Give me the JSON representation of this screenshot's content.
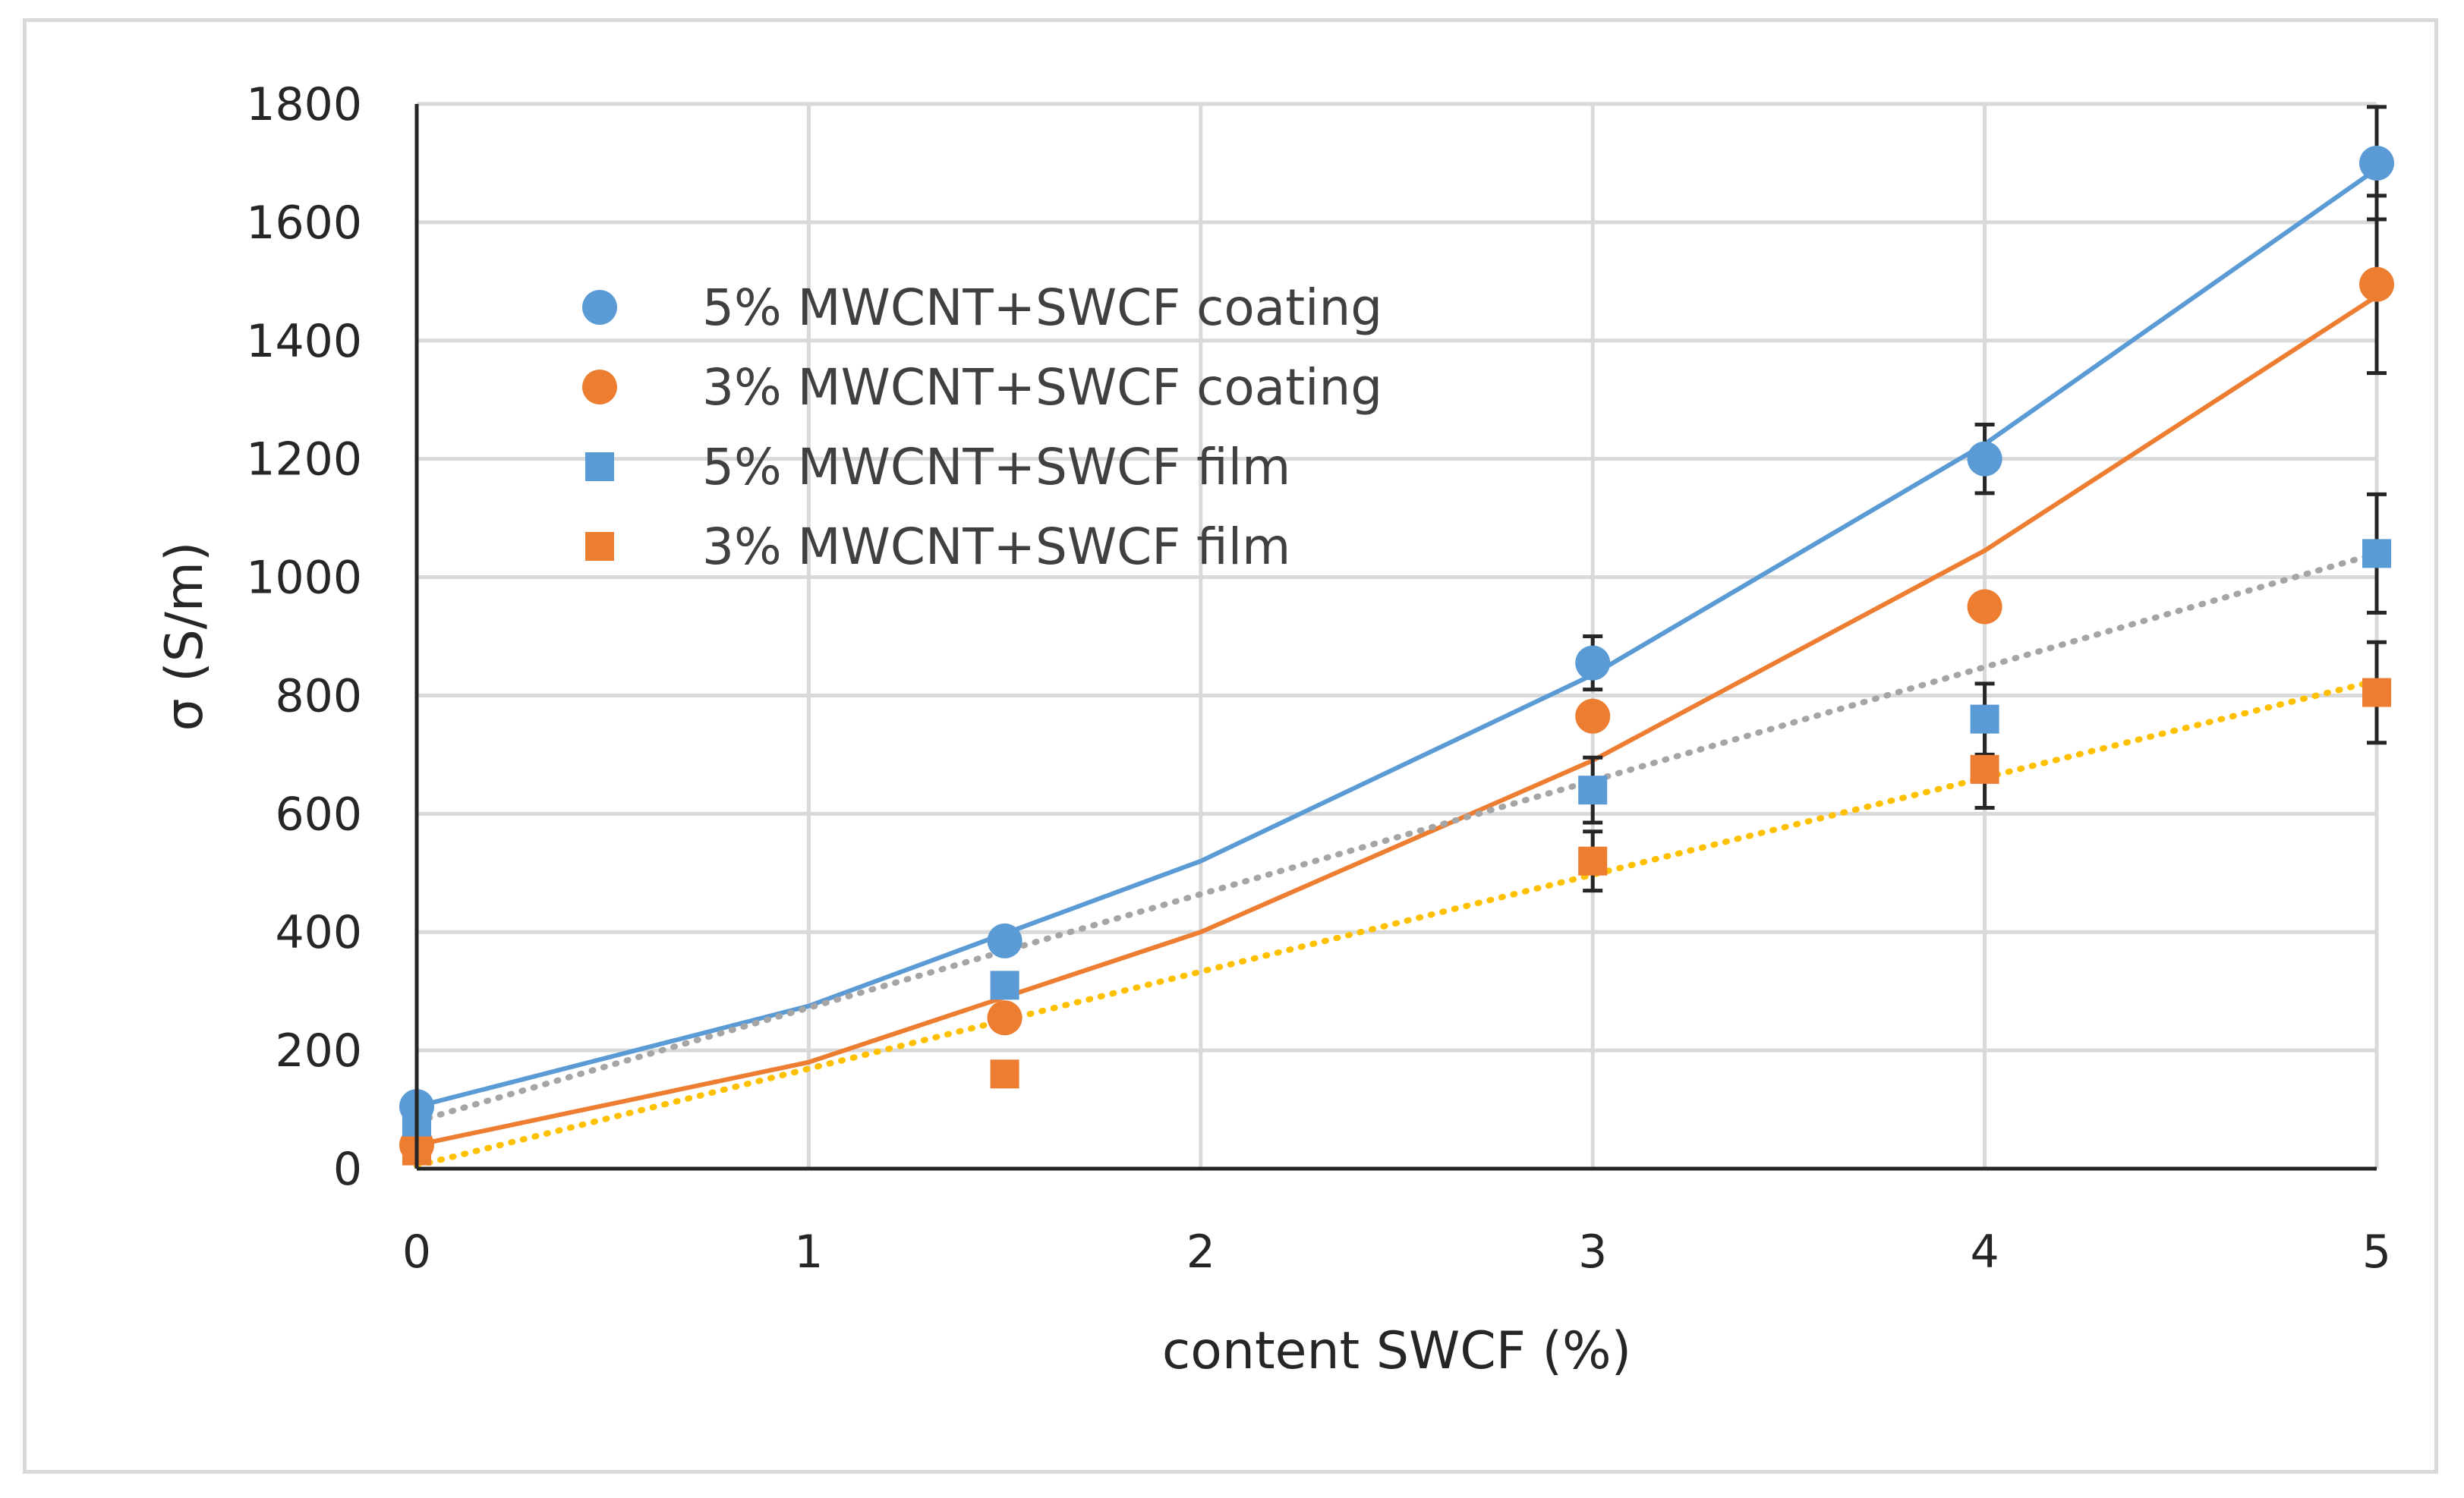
{
  "chart_data": {
    "type": "scatter",
    "title": "",
    "xlabel": "content SWCF (%)",
    "ylabel": "σ (S/m)",
    "xlim": [
      0,
      5
    ],
    "ylim": [
      0,
      1800
    ],
    "xticks": [
      "0",
      "1",
      "2",
      "3",
      "4",
      "5"
    ],
    "yticks": [
      "0",
      "200",
      "400",
      "600",
      "800",
      "1000",
      "1200",
      "1400",
      "1600",
      "1800"
    ],
    "grid": true,
    "legend_position": "top-left",
    "series": [
      {
        "name": "5% MWCNT+SWCF coating",
        "marker": "circle",
        "color": "#5b9bd5",
        "x": [
          0,
          1.5,
          3,
          4,
          5
        ],
        "y": [
          105,
          385,
          855,
          1200,
          1700
        ],
        "error": [
          0,
          0,
          45,
          58,
          95
        ],
        "trendline": {
          "style": "solid",
          "points": [
            [
              0,
              105
            ],
            [
              1,
              275
            ],
            [
              2,
              520
            ],
            [
              3,
              835
            ],
            [
              4,
              1225
            ],
            [
              5,
              1690
            ]
          ]
        }
      },
      {
        "name": "3% MWCNT+SWCF coating",
        "marker": "circle",
        "color": "#ed7d31",
        "x": [
          0,
          1.5,
          3,
          4,
          5
        ],
        "y": [
          40,
          255,
          765,
          950,
          1495
        ],
        "error": [
          0,
          0,
          0,
          0,
          150
        ],
        "trendline": {
          "style": "solid",
          "points": [
            [
              0,
              40
            ],
            [
              1,
              180
            ],
            [
              2,
              400
            ],
            [
              3,
              690
            ],
            [
              4,
              1045
            ],
            [
              5,
              1475
            ]
          ]
        }
      },
      {
        "name": "5% MWCNT+SWCF film",
        "marker": "square",
        "color": "#5b9bd5",
        "x": [
          0,
          1.5,
          3,
          4,
          5
        ],
        "y": [
          70,
          310,
          640,
          760,
          1040
        ],
        "error": [
          0,
          0,
          55,
          60,
          100
        ],
        "trendline": {
          "style": "dotted",
          "color": "#a5a5a5",
          "points": [
            [
              0,
              80
            ],
            [
              5,
              1040
            ]
          ]
        }
      },
      {
        "name": "3% MWCNT+SWCF film",
        "marker": "square",
        "color": "#ed7d31",
        "x": [
          0,
          1.5,
          3,
          4,
          5
        ],
        "y": [
          30,
          160,
          520,
          675,
          805
        ],
        "error": [
          0,
          0,
          50,
          65,
          85
        ],
        "trendline": {
          "style": "dotted",
          "color": "#ffc000",
          "points": [
            [
              0,
              5
            ],
            [
              5,
              825
            ]
          ]
        }
      }
    ]
  }
}
